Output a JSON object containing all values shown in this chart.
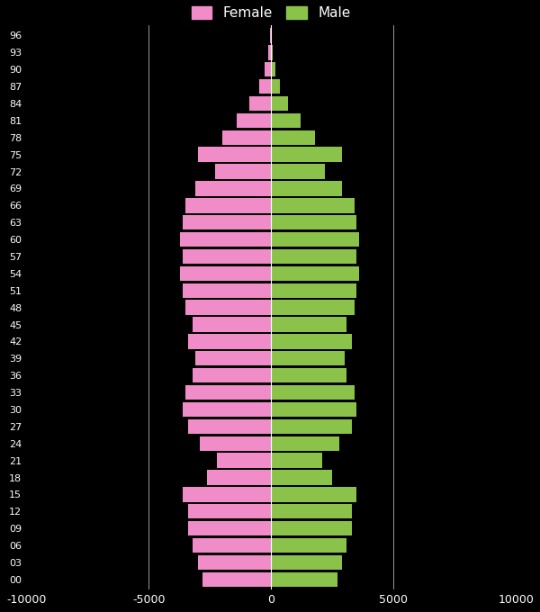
{
  "ages": [
    0,
    3,
    6,
    9,
    12,
    15,
    18,
    21,
    24,
    27,
    30,
    33,
    36,
    39,
    42,
    45,
    48,
    51,
    54,
    57,
    60,
    63,
    66,
    69,
    72,
    75,
    78,
    81,
    84,
    87,
    90,
    93,
    96
  ],
  "female": [
    -2800,
    -3000,
    -3200,
    -3400,
    -3400,
    -3600,
    -2600,
    -2200,
    -2900,
    -3400,
    -3600,
    -3500,
    -3200,
    -3100,
    -3400,
    -3200,
    -3500,
    -3600,
    -3700,
    -3600,
    -3700,
    -3600,
    -3500,
    -3100,
    -2300,
    -3000,
    -2000,
    -1400,
    -900,
    -500,
    -250,
    -100,
    -40
  ],
  "male": [
    2700,
    2900,
    3100,
    3300,
    3300,
    3500,
    2500,
    2100,
    2800,
    3300,
    3500,
    3400,
    3100,
    3000,
    3300,
    3100,
    3400,
    3500,
    3600,
    3500,
    3600,
    3500,
    3400,
    2900,
    2200,
    2900,
    1800,
    1200,
    700,
    350,
    180,
    70,
    20
  ],
  "female_color": "#f08cc8",
  "male_color": "#8bc34a",
  "background_color": "#000000",
  "text_color": "#ffffff",
  "grid_color": "#ffffff",
  "xlim": [
    -10000,
    10000
  ],
  "xticks": [
    -10000,
    -5000,
    0,
    5000,
    10000
  ],
  "figsize": [
    6.0,
    6.8
  ],
  "dpi": 100,
  "bar_height": 2.6
}
